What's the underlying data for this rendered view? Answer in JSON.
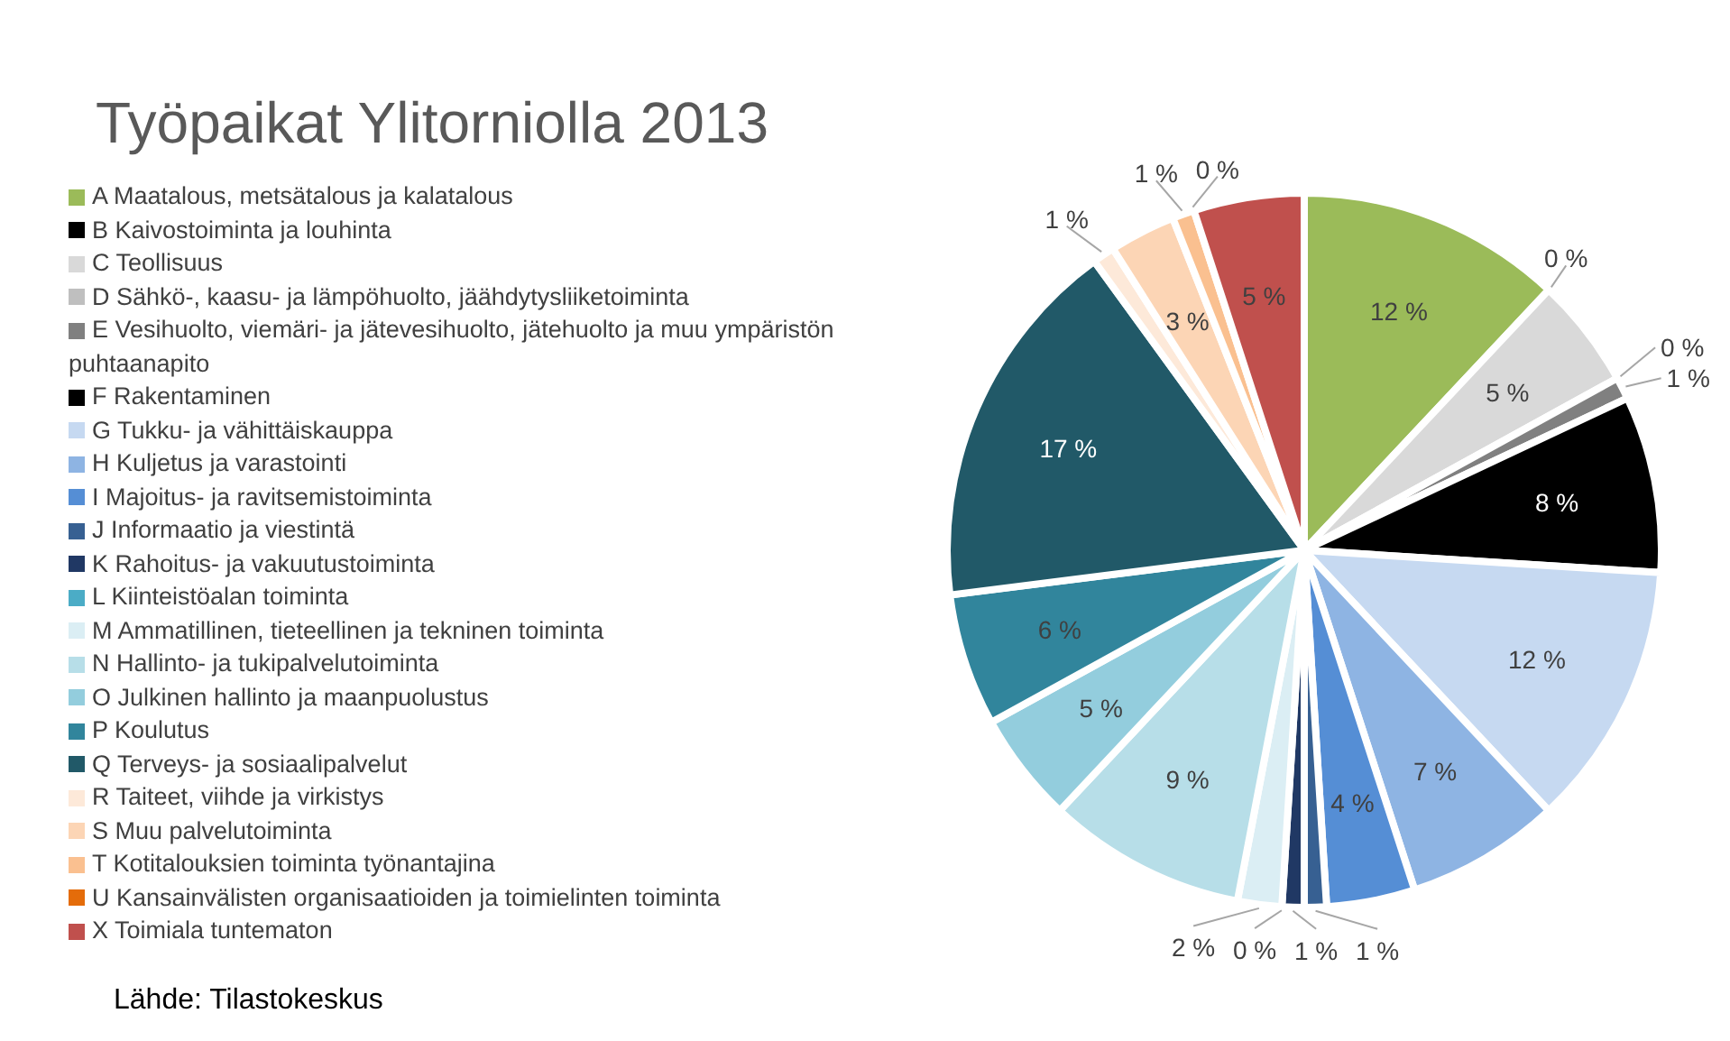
{
  "chart_data": {
    "type": "pie",
    "title": "Työpaikat Ylitorniolla 2013",
    "categories": [
      "A Maatalous, metsätalous ja kalatalous",
      "B Kaivostoiminta ja louhinta",
      "C Teollisuus",
      "D Sähkö-, kaasu- ja lämpöhuolto, jäähdytysliiketoiminta",
      "E Vesihuolto, viemäri- ja jätevesihuolto, jätehuolto ja muu ympäristön puhtaanapito",
      "F Rakentaminen",
      "G Tukku- ja vähittäiskauppa",
      "H Kuljetus ja varastointi",
      "I Majoitus- ja ravitsemistoiminta",
      "J Informaatio ja viestintä",
      "K Rahoitus- ja vakuutustoiminta",
      "L Kiinteistöalan toiminta",
      "M Ammatillinen, tieteellinen ja tekninen toiminta",
      "N Hallinto- ja tukipalvelutoiminta",
      "O Julkinen hallinto ja maanpuolustus",
      "P Koulutus",
      "Q Terveys- ja sosiaalipalvelut",
      "R Taiteet, viihde ja virkistys",
      "S Muu palvelutoiminta",
      "T Kotitalouksien toiminta työnantajina",
      "U Kansainvälisten organisaatioiden ja toimielinten toiminta",
      "X Toimiala tuntematon"
    ],
    "values": [
      12,
      0,
      5,
      0,
      1,
      8,
      12,
      7,
      4,
      1,
      1,
      0,
      2,
      9,
      5,
      6,
      17,
      1,
      3,
      1,
      0,
      5
    ],
    "value_labels": [
      "12 %",
      "0 %",
      "5 %",
      "0 %",
      "1 %",
      "8 %",
      "12 %",
      "7 %",
      "4 %",
      "1 %",
      "1 %",
      "0 %",
      "2 %",
      "9 %",
      "5 %",
      "6 %",
      "17 %",
      "1 %",
      "3 %",
      "1 %",
      "0 %",
      "5 %"
    ],
    "colors": [
      "#9bbb59",
      "#000000",
      "#d9d9d9",
      "#bfbfbf",
      "#808080",
      "#000000",
      "#c6d9f1",
      "#8eb4e3",
      "#558ed5",
      "#376092",
      "#203864",
      "#4bacc6",
      "#dbeef4",
      "#b7dee8",
      "#93cddd",
      "#31859c",
      "#215968",
      "#fde9d9",
      "#fcd5b5",
      "#fac090",
      "#e46c0a",
      "#c0504d"
    ],
    "legend": "left",
    "annotations": [
      "Lähde: Tilastokeskus"
    ]
  }
}
